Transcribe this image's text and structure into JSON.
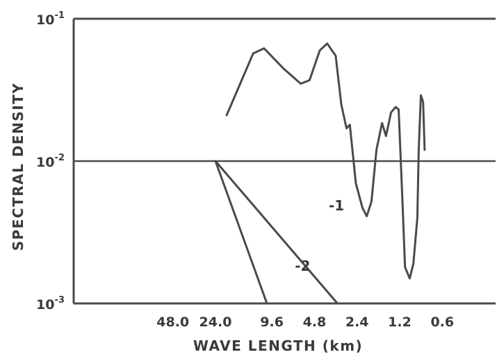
{
  "chart_data": {
    "type": "line",
    "xlabel": "WAVE LENGTH (km)",
    "ylabel": "SPECTRAL DENSITY",
    "x_scale": "log",
    "y_scale": "log",
    "ylim": [
      0.001,
      0.1
    ],
    "x_ticks": [
      {
        "label": "48.0",
        "value": 48.0
      },
      {
        "label": "24.0",
        "value": 24.0
      },
      {
        "label": "9.6",
        "value": 9.6
      },
      {
        "label": "4.8",
        "value": 4.8
      },
      {
        "label": "2.4",
        "value": 2.4
      },
      {
        "label": "1.2",
        "value": 1.2
      },
      {
        "label": "0.6",
        "value": 0.6
      }
    ],
    "y_ticks": [
      {
        "base": "10",
        "exp": "-3",
        "value": 0.001
      },
      {
        "base": "10",
        "exp": "-2",
        "value": 0.01
      },
      {
        "base": "10",
        "exp": "-1",
        "value": 0.1
      }
    ],
    "reference_line_y": 0.01,
    "series": [
      {
        "x": [
          20.0,
          13.0,
          10.9,
          8.0,
          6.0,
          5.2,
          4.4,
          3.9,
          3.4,
          3.1,
          2.85,
          2.7,
          2.45,
          2.2,
          2.05,
          1.9,
          1.75,
          1.6,
          1.5,
          1.38,
          1.28,
          1.22,
          1.15,
          1.1,
          1.02,
          0.96,
          0.9,
          0.88,
          0.85,
          0.82,
          0.8
        ],
        "y": [
          0.021,
          0.057,
          0.062,
          0.045,
          0.035,
          0.037,
          0.06,
          0.067,
          0.055,
          0.025,
          0.017,
          0.018,
          0.007,
          0.0047,
          0.0041,
          0.0052,
          0.012,
          0.0185,
          0.015,
          0.022,
          0.024,
          0.023,
          0.0055,
          0.0018,
          0.0015,
          0.0019,
          0.004,
          0.012,
          0.029,
          0.026,
          0.012
        ]
      },
      {
        "name": "-1",
        "x": [
          24.0,
          3.3
        ],
        "y": [
          0.01,
          0.001
        ]
      },
      {
        "name": "-2",
        "x": [
          24.0,
          10.4
        ],
        "y": [
          0.01,
          0.001
        ]
      }
    ],
    "annotations": [
      {
        "text": "-1",
        "x": 3.8,
        "y": 0.0045
      },
      {
        "text": "-2",
        "x": 6.6,
        "y": 0.0017
      }
    ]
  }
}
